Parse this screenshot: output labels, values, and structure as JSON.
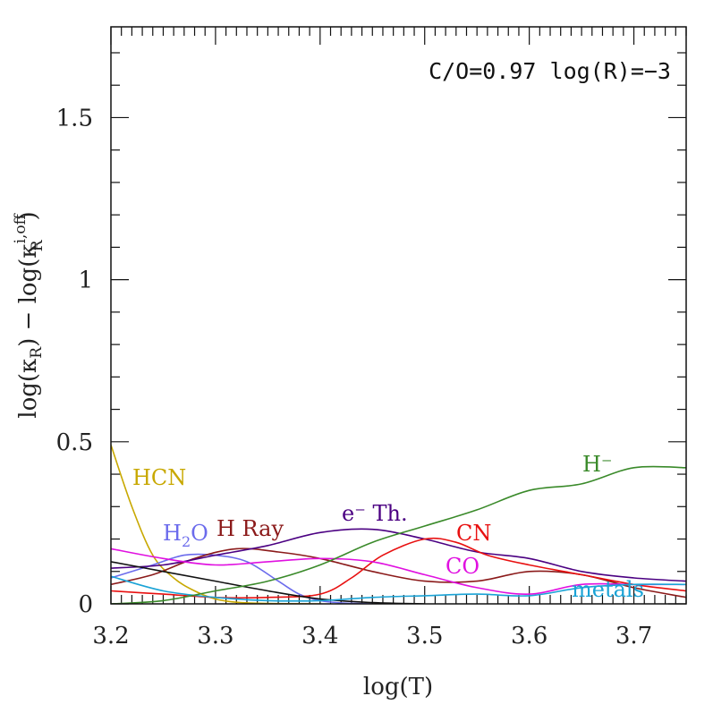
{
  "chart_data": {
    "type": "line",
    "annotation": "C/O=0.97  log(R)=−3",
    "xlabel": "log(T)",
    "ylabel_parts": {
      "prefix": "log(κ",
      "sub1": "R",
      "mid": ") − log(κ",
      "sup2": "i,off",
      "sub2": "R",
      "suffix": ")"
    },
    "xlim": [
      3.2,
      3.75
    ],
    "ylim": [
      0,
      1.78
    ],
    "xticks": [
      3.2,
      3.3,
      3.4,
      3.5,
      3.6,
      3.7
    ],
    "xtick_labels": [
      "3.2",
      "3.3",
      "3.4",
      "3.5",
      "3.6",
      "3.7"
    ],
    "yticks": [
      0,
      0.5,
      1,
      1.5
    ],
    "ytick_labels": [
      "0",
      "0.5",
      "1",
      "1.5"
    ],
    "series": [
      {
        "name": "HCN",
        "label": "HCN",
        "color": "#c8a800",
        "x": [
          3.2,
          3.22,
          3.24,
          3.26,
          3.28,
          3.3,
          3.32,
          3.35,
          3.4
        ],
        "y": [
          0.49,
          0.3,
          0.15,
          0.08,
          0.04,
          0.015,
          0.005,
          0.001,
          0.0
        ]
      },
      {
        "name": "H2O",
        "label": "H",
        "label_sub": "2",
        "label_tail": "O",
        "color": "#6b6bec",
        "x": [
          3.2,
          3.24,
          3.27,
          3.3,
          3.33,
          3.36,
          3.38,
          3.4,
          3.42,
          3.45
        ],
        "y": [
          0.08,
          0.12,
          0.15,
          0.15,
          0.13,
          0.07,
          0.03,
          0.01,
          0.003,
          0.0
        ]
      },
      {
        "name": "H Ray",
        "label": "H  Ray",
        "color": "#8b1a1a",
        "x": [
          3.2,
          3.24,
          3.28,
          3.32,
          3.36,
          3.4,
          3.45,
          3.5,
          3.55,
          3.6,
          3.65,
          3.7,
          3.75
        ],
        "y": [
          0.06,
          0.09,
          0.14,
          0.17,
          0.16,
          0.14,
          0.1,
          0.07,
          0.07,
          0.1,
          0.09,
          0.05,
          0.02
        ]
      },
      {
        "name": "e- Th.",
        "label": "e⁻ Th.",
        "color": "#4b0082",
        "x": [
          3.2,
          3.25,
          3.3,
          3.35,
          3.4,
          3.45,
          3.5,
          3.55,
          3.6,
          3.65,
          3.7,
          3.75
        ],
        "y": [
          0.11,
          0.12,
          0.15,
          0.18,
          0.22,
          0.23,
          0.2,
          0.16,
          0.14,
          0.1,
          0.08,
          0.07
        ]
      },
      {
        "name": "CN",
        "label": "CN",
        "color": "#e81010",
        "x": [
          3.2,
          3.25,
          3.3,
          3.35,
          3.4,
          3.43,
          3.46,
          3.5,
          3.53,
          3.56,
          3.6,
          3.65,
          3.7,
          3.75
        ],
        "y": [
          0.04,
          0.03,
          0.02,
          0.02,
          0.03,
          0.08,
          0.15,
          0.2,
          0.19,
          0.15,
          0.12,
          0.09,
          0.06,
          0.04
        ]
      },
      {
        "name": "CO",
        "label": "CO",
        "color": "#e010e0",
        "x": [
          3.2,
          3.25,
          3.3,
          3.35,
          3.4,
          3.45,
          3.5,
          3.55,
          3.6,
          3.65,
          3.7,
          3.75
        ],
        "y": [
          0.17,
          0.14,
          0.12,
          0.13,
          0.14,
          0.13,
          0.09,
          0.05,
          0.03,
          0.06,
          0.06,
          0.06
        ]
      },
      {
        "name": "black",
        "label": "",
        "color": "#111111",
        "x": [
          3.2,
          3.25,
          3.3,
          3.35,
          3.4,
          3.45,
          3.5
        ],
        "y": [
          0.13,
          0.1,
          0.07,
          0.04,
          0.015,
          0.004,
          0.0
        ]
      },
      {
        "name": "metals",
        "label": "metals",
        "color": "#1aa3d6",
        "x": [
          3.2,
          3.25,
          3.3,
          3.35,
          3.4,
          3.45,
          3.5,
          3.55,
          3.6,
          3.65,
          3.7,
          3.75
        ],
        "y": [
          0.085,
          0.04,
          0.02,
          0.01,
          0.01,
          0.02,
          0.025,
          0.03,
          0.025,
          0.05,
          0.06,
          0.06
        ]
      },
      {
        "name": "H-",
        "label": "H⁻",
        "color": "#3a8a2a",
        "x": [
          3.2,
          3.25,
          3.3,
          3.35,
          3.4,
          3.45,
          3.5,
          3.55,
          3.6,
          3.65,
          3.7,
          3.75
        ],
        "y": [
          0.0,
          0.01,
          0.04,
          0.07,
          0.12,
          0.19,
          0.24,
          0.29,
          0.35,
          0.37,
          0.42,
          0.42
        ]
      }
    ],
    "grid": false,
    "legend": "none"
  }
}
